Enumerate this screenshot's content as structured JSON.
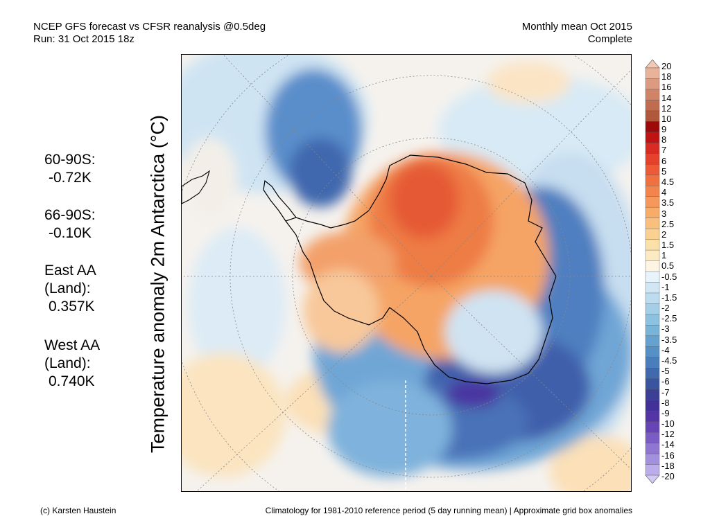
{
  "header": {
    "title_line1": "NCEP GFS forecast vs CFSR reanalysis @0.5deg",
    "title_line2": "Run: 31 Oct 2015 18z",
    "right_line1": "Monthly mean Oct 2015",
    "right_line2": "Complete"
  },
  "map": {
    "ylabel": "Temperature anomaly 2m Antarctica (°C)"
  },
  "stats": [
    {
      "label": "60-90S:",
      "value": "-0.72K"
    },
    {
      "label": "66-90S:",
      "value": "-0.10K"
    },
    {
      "label": "East AA\n(Land):",
      "value": "0.357K"
    },
    {
      "label": "West AA\n(Land):",
      "value": "0.740K"
    }
  ],
  "colorbar": {
    "labels": [
      "20",
      "18",
      "16",
      "14",
      "12",
      "10",
      "9",
      "8",
      "7",
      "6",
      "5",
      "4.5",
      "4",
      "3.5",
      "3",
      "2.5",
      "2",
      "1.5",
      "1",
      "0.5",
      "-0.5",
      "-1",
      "-1.5",
      "-2",
      "-2.5",
      "-3",
      "-3.5",
      "-4",
      "-4.5",
      "-5",
      "-6",
      "-7",
      "-8",
      "-9",
      "-10",
      "-12",
      "-14",
      "-16",
      "-18",
      "-20"
    ],
    "colors": [
      "#f3c9b4",
      "#e9b29a",
      "#dc9a80",
      "#cf8468",
      "#c06c50",
      "#b0573c",
      "#9c0a0a",
      "#c01414",
      "#d92a23",
      "#e5412c",
      "#ee5a35",
      "#f1703f",
      "#f3844c",
      "#f6985b",
      "#f8ac6a",
      "#f9bf7c",
      "#fad191",
      "#fbe0a8",
      "#fcebc2",
      "#fdf5e2",
      "#e8f3fb",
      "#d2e7f5",
      "#bcdcef",
      "#a4cfe8",
      "#8dc1e0",
      "#78b3d8",
      "#65a2cf",
      "#5590c6",
      "#4a7dbb",
      "#4069ae",
      "#3a54a0",
      "#3b3f95",
      "#43319a",
      "#5534a8",
      "#6845b6",
      "#7b5cc4",
      "#8f76d1",
      "#a491dd",
      "#baadea",
      "#d2caf4"
    ]
  },
  "footer": {
    "left": "(c) Karsten Haustein",
    "right": "Climatology for 1981-2010 reference period (5 day running mean) | Approximate grid box anomalies"
  }
}
